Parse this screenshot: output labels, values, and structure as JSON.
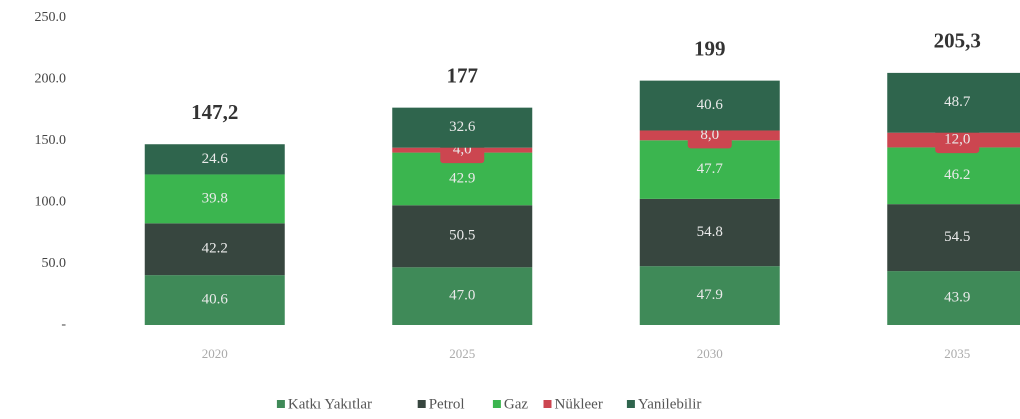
{
  "chart_data": {
    "type": "stacked-bar",
    "categories": [
      "2020",
      "2025",
      "2030",
      "2035"
    ],
    "series": [
      {
        "name": "Katkı Yakıtlar",
        "color": "#3f8a58",
        "values": [
          40.6,
          47.0,
          47.9,
          43.9
        ],
        "value_labels": [
          "40.6",
          "47.0",
          "47.9",
          "43.9"
        ]
      },
      {
        "name": "Petrol",
        "color": "#37463f",
        "values": [
          42.2,
          50.5,
          54.8,
          54.5
        ],
        "value_labels": [
          "42.2",
          "50.5",
          "54.8",
          "54.5"
        ]
      },
      {
        "name": "Gaz",
        "color": "#3bb54f",
        "values": [
          39.8,
          42.9,
          47.7,
          46.2
        ],
        "value_labels": [
          "39.8",
          "42.9",
          "47.7",
          "46.2"
        ]
      },
      {
        "name": "Nükleer",
        "color": "#cc4650",
        "values": [
          null,
          4.0,
          8.0,
          12.0
        ],
        "value_labels": [
          null,
          "4,0",
          "8,0",
          "12,0"
        ]
      },
      {
        "name": "Yanilebilir",
        "color": "#2f654d",
        "values": [
          24.6,
          32.6,
          40.6,
          48.7
        ],
        "value_labels": [
          "24.6",
          "32.6",
          "40.6",
          "48.7"
        ]
      }
    ],
    "totals": [
      147.2,
      177,
      199,
      205.3
    ],
    "total_labels": [
      "147,2",
      "177",
      "199",
      "205,3"
    ],
    "ylim": [
      0,
      250
    ],
    "yticks": [
      {
        "value": 0,
        "label": "-"
      },
      {
        "value": 50,
        "label": "50.0"
      },
      {
        "value": 100,
        "label": "100.0"
      },
      {
        "value": 150,
        "label": "150.0"
      },
      {
        "value": 200,
        "label": "200.0"
      },
      {
        "value": 250,
        "label": "250.0"
      }
    ],
    "legend": "bottom"
  }
}
